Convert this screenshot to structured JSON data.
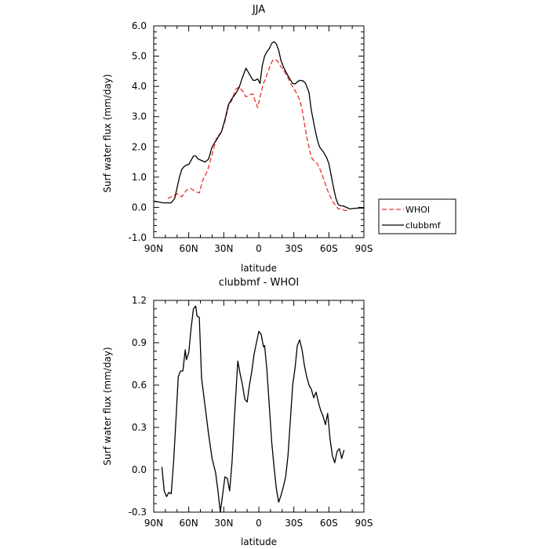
{
  "chart_data": [
    {
      "type": "line",
      "title": "JJA",
      "xlabel": "latitude",
      "ylabel": "Surf water flux (mm/day)",
      "xlim": [
        -90,
        90
      ],
      "ylim": [
        -1.0,
        6.0
      ],
      "xticks": [
        {
          "value": -90,
          "label": "90N"
        },
        {
          "value": -60,
          "label": "60N"
        },
        {
          "value": -30,
          "label": "30N"
        },
        {
          "value": 0,
          "label": "0"
        },
        {
          "value": 30,
          "label": "30S"
        },
        {
          "value": 60,
          "label": "60S"
        },
        {
          "value": 90,
          "label": "90S"
        }
      ],
      "yticks": [
        {
          "value": -1.0,
          "label": "-1.0"
        },
        {
          "value": 0.0,
          "label": "0.0"
        },
        {
          "value": 1.0,
          "label": "1.0"
        },
        {
          "value": 2.0,
          "label": "2.0"
        },
        {
          "value": 3.0,
          "label": "3.0"
        },
        {
          "value": 4.0,
          "label": "4.0"
        },
        {
          "value": 5.0,
          "label": "5.0"
        },
        {
          "value": 6.0,
          "label": "6.0"
        }
      ],
      "legend": "outside-right",
      "series": [
        {
          "name": "WHOI",
          "color": "#e8302a",
          "dash": "dashed",
          "x": [
            -78,
            -73,
            -70,
            -66,
            -62,
            -58,
            -54,
            -51,
            -48,
            -44,
            -40,
            -36,
            -32,
            -29,
            -26,
            -23,
            -20,
            -17,
            -14,
            -11,
            -8,
            -5,
            -3,
            -1,
            1,
            4,
            6,
            8,
            10,
            12,
            14,
            16,
            18,
            20,
            22,
            24,
            26,
            28,
            30,
            32,
            35,
            37,
            40,
            42,
            45,
            48,
            50,
            52,
            55,
            58,
            60,
            62,
            64,
            66,
            68,
            70,
            72,
            74,
            76
          ],
          "y": [
            0.3,
            0.38,
            0.45,
            0.35,
            0.57,
            0.62,
            0.52,
            0.48,
            0.9,
            1.2,
            1.75,
            2.3,
            2.5,
            2.85,
            3.35,
            3.55,
            3.9,
            3.98,
            3.85,
            3.65,
            3.72,
            3.75,
            3.5,
            3.3,
            3.65,
            4.1,
            4.28,
            4.5,
            4.72,
            4.87,
            4.88,
            4.85,
            4.7,
            4.6,
            4.48,
            4.35,
            4.2,
            4.05,
            3.92,
            3.8,
            3.55,
            3.25,
            2.55,
            2.15,
            1.65,
            1.5,
            1.45,
            1.3,
            1.0,
            0.65,
            0.45,
            0.3,
            0.15,
            0.05,
            -0.05,
            -0.05,
            -0.08,
            -0.1,
            -0.1
          ]
        },
        {
          "name": "clubbmf",
          "color": "#000000",
          "dash": "solid",
          "x": [
            -90,
            -86,
            -82,
            -78,
            -75,
            -72,
            -70,
            -68,
            -66,
            -64,
            -62,
            -60,
            -58,
            -56,
            -54,
            -52,
            -49,
            -46,
            -43,
            -40,
            -36,
            -32,
            -29,
            -26,
            -23,
            -20,
            -17,
            -14,
            -11,
            -8,
            -5,
            -3,
            -1,
            1,
            3,
            5,
            7,
            9,
            11,
            13,
            15,
            17,
            19,
            21,
            23,
            25,
            27,
            29,
            31,
            33,
            35,
            38,
            40,
            43,
            45,
            48,
            50,
            52,
            55,
            58,
            60,
            62,
            64,
            66,
            68,
            70,
            72,
            75,
            78,
            82,
            86,
            90
          ],
          "y": [
            0.2,
            0.18,
            0.15,
            0.15,
            0.15,
            0.3,
            0.65,
            1.0,
            1.25,
            1.35,
            1.4,
            1.42,
            1.55,
            1.7,
            1.7,
            1.6,
            1.55,
            1.5,
            1.6,
            2.0,
            2.25,
            2.5,
            2.9,
            3.4,
            3.6,
            3.75,
            3.95,
            4.3,
            4.6,
            4.4,
            4.2,
            4.2,
            4.25,
            4.1,
            4.7,
            5.0,
            5.15,
            5.25,
            5.42,
            5.48,
            5.4,
            5.2,
            4.85,
            4.65,
            4.5,
            4.35,
            4.22,
            4.1,
            4.08,
            4.15,
            4.2,
            4.18,
            4.1,
            3.8,
            3.2,
            2.6,
            2.25,
            2.0,
            1.85,
            1.65,
            1.45,
            1.05,
            0.65,
            0.3,
            0.1,
            0.05,
            0.05,
            0.0,
            -0.05,
            -0.03,
            -0.02,
            -0.02
          ]
        }
      ]
    },
    {
      "type": "line",
      "title": "clubbmf - WHOI",
      "xlabel": "latitude",
      "ylabel": "Surf water flux (mm/day)",
      "xlim": [
        -90,
        90
      ],
      "ylim": [
        -0.3,
        1.2
      ],
      "xticks": [
        {
          "value": -90,
          "label": "90N"
        },
        {
          "value": -60,
          "label": "60N"
        },
        {
          "value": -30,
          "label": "30N"
        },
        {
          "value": 0,
          "label": "0"
        },
        {
          "value": 30,
          "label": "30S"
        },
        {
          "value": 60,
          "label": "60S"
        },
        {
          "value": 90,
          "label": "90S"
        }
      ],
      "yticks": [
        {
          "value": -0.3,
          "label": "-0.3"
        },
        {
          "value": 0.0,
          "label": "0.0"
        },
        {
          "value": 0.3,
          "label": "0.3"
        },
        {
          "value": 0.6,
          "label": "0.6"
        },
        {
          "value": 0.9,
          "label": "0.9"
        },
        {
          "value": 1.2,
          "label": "1.2"
        }
      ],
      "series": [
        {
          "color": "#000000",
          "dash": "solid",
          "x": [
            -83,
            -81,
            -79,
            -77,
            -75,
            -73,
            -71,
            -69,
            -67,
            -65,
            -63,
            -62,
            -60,
            -58,
            -56,
            -54,
            -53,
            -51,
            -49,
            -46,
            -43,
            -40,
            -37,
            -35,
            -33,
            -31,
            -29,
            -27,
            -25,
            -23,
            -21,
            -18,
            -16,
            -14,
            -12,
            -10,
            -8,
            -6,
            -4,
            -2,
            0,
            2,
            4,
            5,
            7,
            9,
            11,
            13,
            15,
            17,
            19,
            21,
            23,
            25,
            27,
            29,
            31,
            33,
            35,
            37,
            39,
            41,
            43,
            45,
            47,
            49,
            51,
            53,
            55,
            57,
            59,
            61,
            63,
            65,
            67,
            69,
            71,
            73
          ],
          "y": [
            0.02,
            -0.15,
            -0.19,
            -0.16,
            -0.17,
            0.05,
            0.35,
            0.66,
            0.7,
            0.7,
            0.85,
            0.78,
            0.83,
            1.0,
            1.14,
            1.16,
            1.09,
            1.08,
            0.65,
            0.45,
            0.25,
            0.08,
            -0.02,
            -0.15,
            -0.3,
            -0.18,
            -0.05,
            -0.06,
            -0.15,
            0.05,
            0.35,
            0.77,
            0.68,
            0.6,
            0.5,
            0.48,
            0.6,
            0.7,
            0.82,
            0.9,
            0.98,
            0.96,
            0.87,
            0.88,
            0.7,
            0.45,
            0.2,
            0.02,
            -0.13,
            -0.23,
            -0.18,
            -0.12,
            -0.05,
            0.1,
            0.35,
            0.6,
            0.72,
            0.88,
            0.92,
            0.85,
            0.74,
            0.66,
            0.6,
            0.57,
            0.51,
            0.55,
            0.48,
            0.42,
            0.38,
            0.32,
            0.4,
            0.22,
            0.1,
            0.05,
            0.13,
            0.15,
            0.08,
            0.14
          ]
        }
      ]
    }
  ]
}
